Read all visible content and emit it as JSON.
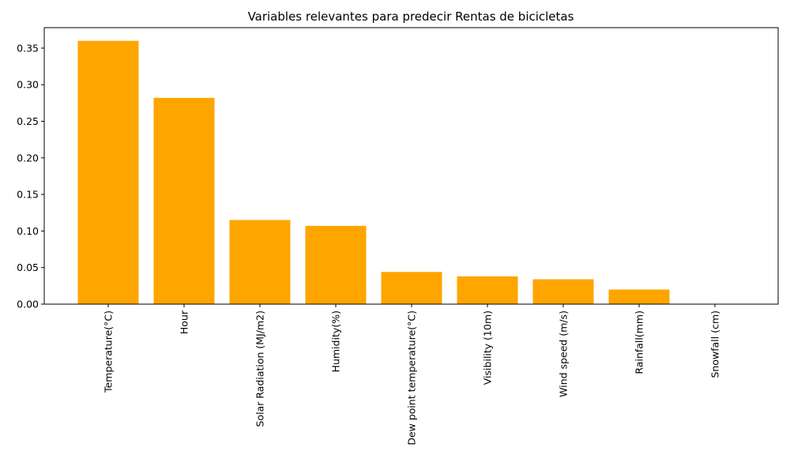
{
  "chart_data": {
    "type": "bar",
    "title": "Variables relevantes para predecir Rentas de bicicletas",
    "xlabel": "",
    "ylabel": "",
    "categories": [
      "Temperature(°C)",
      "Hour",
      "Solar Radiation (MJ/m2)",
      "Humidity(%)",
      "Dew point temperature(°C)",
      "Visibility (10m)",
      "Wind speed (m/s)",
      "Rainfall(mm)",
      "Snowfall (cm)"
    ],
    "values": [
      0.36,
      0.282,
      0.115,
      0.107,
      0.044,
      0.038,
      0.034,
      0.02,
      0.0
    ],
    "ylim": [
      0,
      0.378
    ],
    "yticks": [
      0.0,
      0.05,
      0.1,
      0.15,
      0.2,
      0.25,
      0.3,
      0.35
    ],
    "ytick_labels": [
      "0.00",
      "0.05",
      "0.10",
      "0.15",
      "0.20",
      "0.25",
      "0.30",
      "0.35"
    ],
    "bar_color": "#FFA500",
    "grid": false,
    "legend": "none"
  }
}
